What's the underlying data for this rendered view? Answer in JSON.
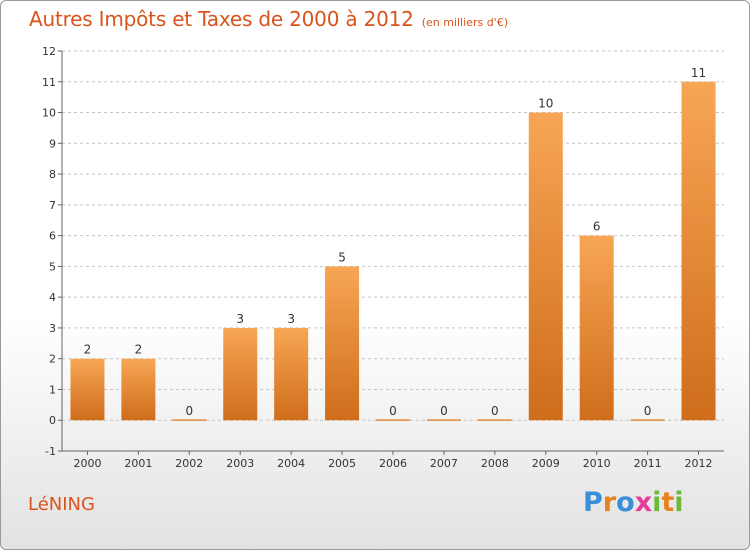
{
  "title": "Autres Impôts et Taxes de 2000 à 2012",
  "subtitle": "(en milliers d'€)",
  "commune": "LéNING",
  "brand": {
    "letters": [
      "P",
      "r",
      "o",
      "x",
      "i",
      "t",
      "i"
    ],
    "colors": [
      "#3a8fd8",
      "#e8821e",
      "#3a8fd8",
      "#e83a9a",
      "#6cb83a",
      "#e8821e",
      "#6cb83a"
    ]
  },
  "colors": {
    "bar_top": "#f7a655",
    "bar_bottom": "#cf6d1b",
    "title": "#d9541c",
    "grid": "#c4c4c4",
    "axis": "#666666"
  },
  "chart_data": {
    "type": "bar",
    "categories": [
      "2000",
      "2001",
      "2002",
      "2003",
      "2004",
      "2005",
      "2006",
      "2007",
      "2008",
      "2009",
      "2010",
      "2011",
      "2012"
    ],
    "values": [
      2,
      2,
      0,
      3,
      3,
      5,
      0,
      0,
      0,
      10,
      6,
      0,
      11
    ],
    "data_labels": [
      "2",
      "2",
      "0",
      "3",
      "3",
      "5",
      "0",
      "0",
      "0",
      "10",
      "6",
      "0",
      "11"
    ],
    "y_ticks": [
      -1,
      0,
      1,
      2,
      3,
      4,
      5,
      6,
      7,
      8,
      9,
      10,
      11,
      12
    ],
    "y_tick_labels": [
      "-1",
      "0",
      "1",
      "2",
      "3",
      "4",
      "5",
      "6",
      "7",
      "8",
      "9",
      "10",
      "11",
      "12"
    ],
    "ylim": [
      -1,
      12
    ],
    "grid": "horizontal dashed",
    "xlabel": "",
    "ylabel": ""
  }
}
